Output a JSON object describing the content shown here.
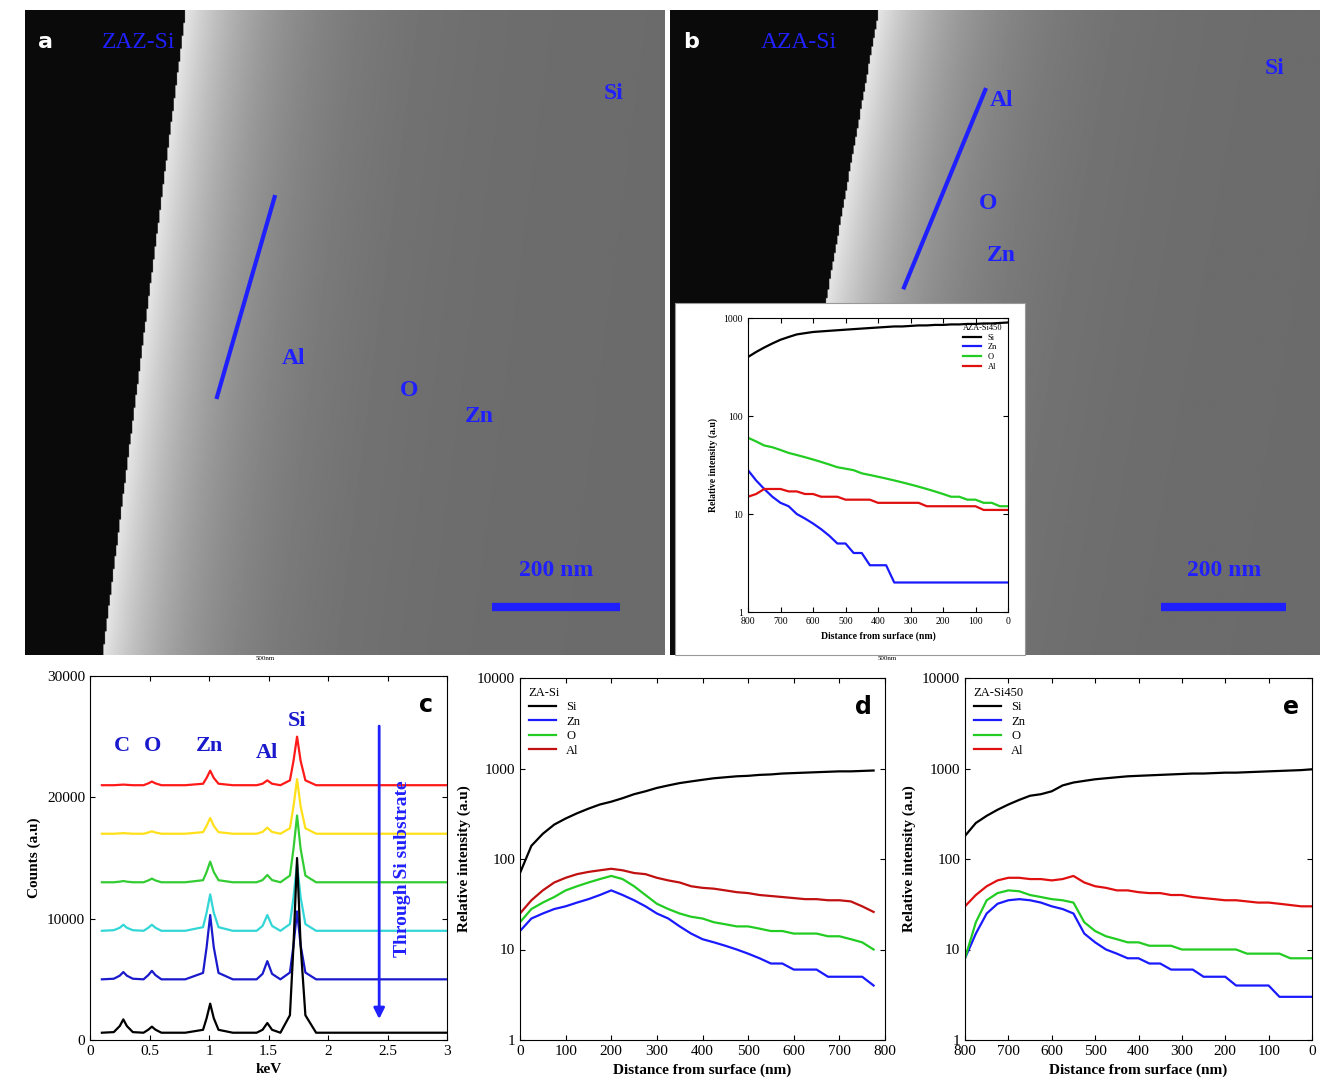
{
  "chart_data": [
    {
      "type": "image",
      "panel": "a",
      "title": "ZAZ-Si",
      "labels": [
        "Si",
        "Al",
        "O",
        "Zn"
      ],
      "scale_bar": "200 nm",
      "ruler": "500nm"
    },
    {
      "type": "image",
      "panel": "b",
      "title": "AZA-Si",
      "labels": [
        "Si",
        "Al",
        "O",
        "Zn"
      ],
      "scale_bar": "200 nm",
      "ruler": "500nm"
    },
    {
      "type": "line",
      "title": "AZA-Si450",
      "log": "y",
      "legend": "upper right",
      "x_label": "Distance from surface (nm)",
      "y_label": "Relative intensity (a.u)",
      "xlim": [
        800,
        0
      ],
      "xticks": [
        800,
        700,
        600,
        500,
        400,
        300,
        200,
        100,
        0
      ],
      "ylim": [
        1,
        1000
      ],
      "yticks": [
        1,
        10,
        100,
        1000
      ],
      "x": [
        800,
        775,
        750,
        725,
        700,
        675,
        650,
        625,
        600,
        575,
        550,
        525,
        500,
        475,
        450,
        425,
        400,
        375,
        350,
        325,
        300,
        275,
        250,
        225,
        200,
        175,
        150,
        125,
        100,
        75,
        50,
        25,
        0
      ],
      "series": [
        {
          "name": "Si",
          "color": "#000000",
          "values": [
            400,
            450,
            500,
            550,
            600,
            640,
            680,
            700,
            720,
            730,
            740,
            750,
            760,
            770,
            780,
            790,
            800,
            810,
            820,
            820,
            830,
            840,
            840,
            850,
            850,
            860,
            860,
            870,
            870,
            880,
            880,
            890,
            900
          ]
        },
        {
          "name": "Zn",
          "color": "#1a1aff",
          "values": [
            28,
            22,
            18,
            15,
            13,
            12,
            10,
            9,
            8,
            7,
            6,
            5,
            5,
            4,
            4,
            3,
            3,
            3,
            2,
            2,
            2,
            2,
            2,
            2,
            2,
            2,
            2,
            2,
            2,
            2,
            2,
            2,
            2
          ]
        },
        {
          "name": "O",
          "color": "#22cc22",
          "values": [
            60,
            55,
            50,
            48,
            45,
            42,
            40,
            38,
            36,
            34,
            32,
            30,
            29,
            28,
            26,
            25,
            24,
            23,
            22,
            21,
            20,
            19,
            18,
            17,
            16,
            15,
            15,
            14,
            14,
            13,
            13,
            12,
            12
          ]
        },
        {
          "name": "Al",
          "color": "#e01010",
          "values": [
            15,
            16,
            18,
            18,
            18,
            17,
            17,
            16,
            16,
            15,
            15,
            15,
            14,
            14,
            14,
            14,
            13,
            13,
            13,
            13,
            13,
            13,
            12,
            12,
            12,
            12,
            12,
            12,
            12,
            11,
            11,
            11,
            11
          ]
        }
      ]
    },
    {
      "type": "spectrum",
      "panel": "c",
      "x_label": "keV",
      "y_label": "Counts (a.u)",
      "annotations": [
        "C",
        "O",
        "Zn",
        "Al",
        "Si"
      ],
      "arrow_text": "Through Si substrate",
      "xlim": [
        0,
        3
      ],
      "xticks": [
        0,
        0.5,
        1,
        1.5,
        2,
        2.5,
        3
      ],
      "ylim": [
        0,
        30000
      ],
      "yticks": [
        0,
        10000,
        20000,
        30000
      ],
      "x": [
        0.1,
        0.2,
        0.25,
        0.28,
        0.31,
        0.36,
        0.45,
        0.49,
        0.52,
        0.55,
        0.6,
        0.8,
        0.95,
        0.98,
        1.01,
        1.04,
        1.08,
        1.2,
        1.4,
        1.45,
        1.49,
        1.53,
        1.6,
        1.68,
        1.71,
        1.74,
        1.77,
        1.81,
        1.9,
        2.0,
        2.5,
        3.0
      ],
      "series": [
        {
          "color": "#ff1a1a",
          "values": [
            21000,
            21000,
            21030,
            21050,
            21030,
            21000,
            21000,
            21150,
            21300,
            21150,
            21000,
            21000,
            21120,
            21600,
            22200,
            21600,
            21120,
            21000,
            21000,
            21120,
            21400,
            21120,
            21000,
            21400,
            23000,
            25000,
            23000,
            21400,
            21000,
            21000,
            21000,
            21000
          ]
        },
        {
          "color": "#ffe01a",
          "values": [
            17000,
            17000,
            17030,
            17050,
            17030,
            17000,
            17000,
            17100,
            17200,
            17100,
            17000,
            17000,
            17130,
            17650,
            18300,
            17650,
            17130,
            17000,
            17000,
            17150,
            17500,
            17150,
            17000,
            17450,
            19250,
            21500,
            19250,
            17450,
            17000,
            17000,
            17000,
            17000
          ]
        },
        {
          "color": "#33cc33",
          "values": [
            13000,
            13000,
            13050,
            13100,
            13050,
            13000,
            13000,
            13150,
            13300,
            13150,
            13000,
            13000,
            13170,
            13850,
            14700,
            13850,
            13170,
            13000,
            13000,
            13180,
            13600,
            13180,
            13000,
            13550,
            15750,
            18500,
            15750,
            13550,
            13000,
            13000,
            13000,
            13000
          ]
        },
        {
          "color": "#33d6d6",
          "values": [
            9000,
            9050,
            9250,
            9500,
            9250,
            9050,
            9000,
            9250,
            9500,
            9250,
            9000,
            9000,
            9300,
            10500,
            12000,
            10500,
            9300,
            9000,
            9000,
            9400,
            10300,
            9400,
            9000,
            9550,
            11750,
            14500,
            11750,
            9550,
            9000,
            9000,
            9000,
            9000
          ]
        },
        {
          "color": "#1a1acc",
          "values": [
            5000,
            5050,
            5300,
            5600,
            5300,
            5050,
            5000,
            5350,
            5700,
            5350,
            5000,
            5000,
            5530,
            7650,
            10300,
            7650,
            5530,
            5000,
            5000,
            5450,
            6500,
            5450,
            5000,
            5560,
            7800,
            10600,
            7800,
            5560,
            5000,
            5000,
            5000,
            5000
          ]
        },
        {
          "color": "#000000",
          "values": [
            600,
            650,
            1150,
            1700,
            1150,
            650,
            600,
            850,
            1100,
            850,
            600,
            600,
            840,
            1800,
            3000,
            1800,
            840,
            600,
            600,
            840,
            1400,
            840,
            600,
            2040,
            7800,
            15000,
            7800,
            2040,
            600,
            600,
            600,
            600
          ]
        }
      ]
    },
    {
      "type": "line",
      "panel": "d",
      "title": "ZA-Si",
      "log": "y",
      "legend": "upper left",
      "x_label": "Distance from surface (nm)",
      "y_label": "Relative intensity (a.u)",
      "xlim": [
        0,
        800
      ],
      "xticks": [
        0,
        100,
        200,
        300,
        400,
        500,
        600,
        700,
        800
      ],
      "ylim": [
        1,
        10000
      ],
      "yticks": [
        1,
        10,
        100,
        1000,
        10000
      ],
      "x": [
        0,
        25,
        50,
        75,
        100,
        125,
        150,
        175,
        200,
        225,
        250,
        275,
        300,
        325,
        350,
        375,
        400,
        425,
        450,
        475,
        500,
        525,
        550,
        575,
        600,
        625,
        650,
        675,
        700,
        725,
        750,
        775
      ],
      "series": [
        {
          "name": "Si",
          "color": "#000000",
          "values": [
            70,
            140,
            190,
            240,
            280,
            320,
            360,
            400,
            430,
            470,
            520,
            560,
            610,
            650,
            690,
            720,
            750,
            780,
            800,
            820,
            830,
            850,
            860,
            880,
            890,
            900,
            910,
            920,
            930,
            930,
            940,
            950
          ]
        },
        {
          "name": "Zn",
          "color": "#1a1aff",
          "values": [
            16,
            22,
            25,
            28,
            30,
            33,
            36,
            40,
            45,
            40,
            35,
            30,
            25,
            22,
            18,
            15,
            13,
            12,
            11,
            10,
            9,
            8,
            7,
            7,
            6,
            6,
            6,
            5,
            5,
            5,
            5,
            4
          ]
        },
        {
          "name": "O",
          "color": "#22cc22",
          "values": [
            20,
            28,
            33,
            38,
            45,
            50,
            55,
            60,
            65,
            60,
            50,
            40,
            32,
            28,
            25,
            23,
            22,
            20,
            19,
            18,
            18,
            17,
            16,
            16,
            15,
            15,
            15,
            14,
            14,
            13,
            12,
            10
          ]
        },
        {
          "name": "Al",
          "color": "#c01010",
          "values": [
            25,
            35,
            45,
            55,
            62,
            68,
            72,
            75,
            78,
            75,
            70,
            68,
            62,
            58,
            55,
            50,
            48,
            47,
            45,
            43,
            42,
            40,
            39,
            38,
            37,
            36,
            36,
            35,
            35,
            34,
            30,
            26
          ]
        }
      ]
    },
    {
      "type": "line",
      "panel": "e",
      "title": "ZA-Si450",
      "log": "y",
      "legend": "upper left",
      "x_label": "Distance from surface (nm)",
      "y_label": "Relative intensity (a.u)",
      "xlim": [
        800,
        0
      ],
      "xticks": [
        800,
        700,
        600,
        500,
        400,
        300,
        200,
        100,
        0
      ],
      "ylim": [
        1,
        10000
      ],
      "yticks": [
        1,
        10,
        100,
        1000,
        10000
      ],
      "x": [
        800,
        775,
        750,
        725,
        700,
        675,
        650,
        625,
        600,
        575,
        550,
        525,
        500,
        475,
        450,
        425,
        400,
        375,
        350,
        325,
        300,
        275,
        250,
        225,
        200,
        175,
        150,
        125,
        100,
        75,
        50,
        25,
        0
      ],
      "series": [
        {
          "name": "Si",
          "color": "#000000",
          "values": [
            180,
            250,
            300,
            350,
            400,
            450,
            500,
            520,
            560,
            650,
            700,
            730,
            760,
            780,
            800,
            820,
            830,
            840,
            850,
            860,
            870,
            880,
            880,
            890,
            900,
            900,
            910,
            920,
            930,
            940,
            950,
            960,
            980
          ]
        },
        {
          "name": "Zn",
          "color": "#1a1aff",
          "values": [
            8,
            15,
            25,
            32,
            35,
            36,
            35,
            33,
            30,
            28,
            25,
            15,
            12,
            10,
            9,
            8,
            8,
            7,
            7,
            6,
            6,
            6,
            5,
            5,
            5,
            4,
            4,
            4,
            4,
            3,
            3,
            3,
            3
          ]
        },
        {
          "name": "O",
          "color": "#22cc22",
          "values": [
            8,
            20,
            35,
            42,
            45,
            44,
            40,
            38,
            36,
            35,
            33,
            20,
            16,
            14,
            13,
            12,
            12,
            11,
            11,
            11,
            10,
            10,
            10,
            10,
            10,
            10,
            9,
            9,
            9,
            9,
            8,
            8,
            8
          ]
        },
        {
          "name": "Al",
          "color": "#e01010",
          "values": [
            30,
            40,
            50,
            58,
            62,
            62,
            60,
            60,
            58,
            60,
            65,
            55,
            50,
            48,
            45,
            45,
            43,
            42,
            42,
            40,
            40,
            38,
            37,
            36,
            35,
            35,
            34,
            33,
            33,
            32,
            31,
            30,
            30
          ]
        }
      ]
    }
  ]
}
